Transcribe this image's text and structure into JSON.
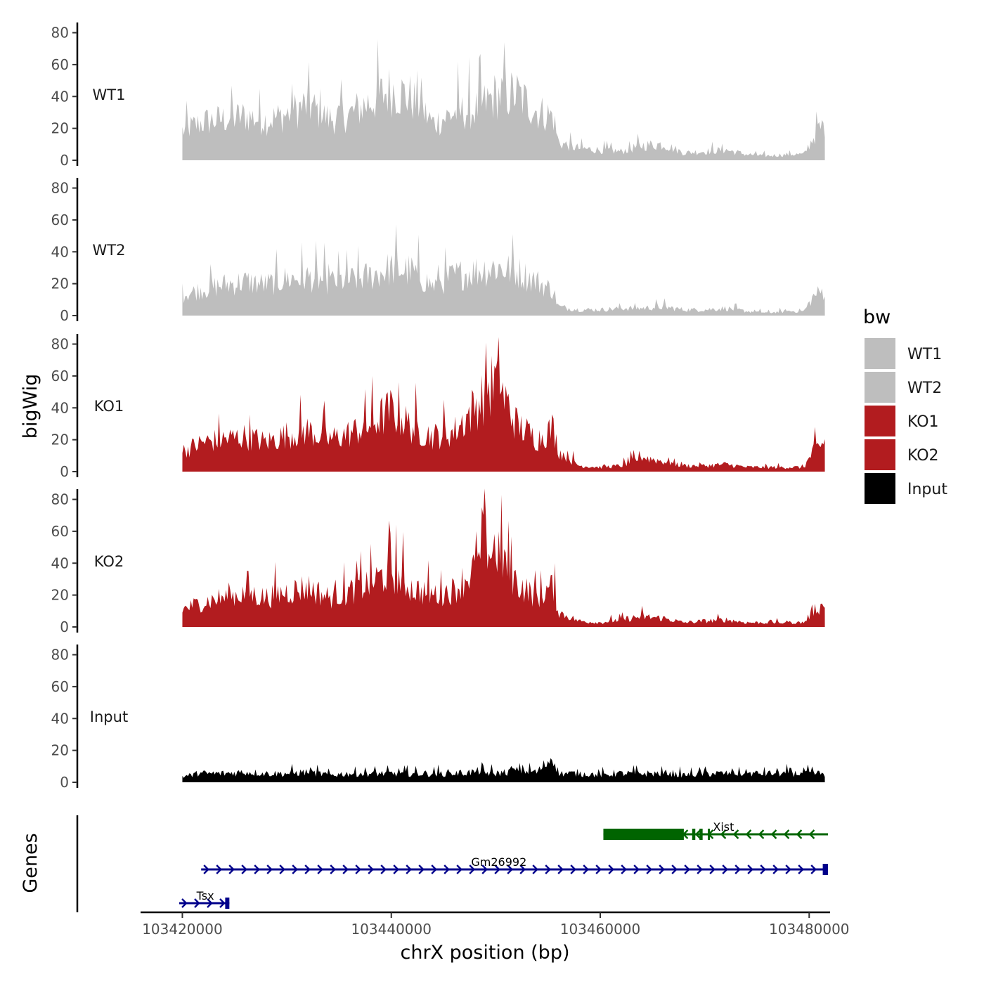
{
  "chart_data": {
    "type": "area",
    "title": "",
    "xlabel": "chrX position (bp)",
    "ylabel": "bigWig",
    "genes_label": "Genes",
    "xlim": [
      103416000,
      103482000
    ],
    "ylim": [
      0,
      82
    ],
    "x_ticks": [
      103420000,
      103440000,
      103460000,
      103480000
    ],
    "x_tick_labels": [
      "103420000",
      "103440000",
      "103460000",
      "103480000"
    ],
    "y_ticks": [
      0,
      20,
      40,
      60,
      80
    ],
    "y_tick_labels": [
      "0",
      "20",
      "40",
      "60",
      "80"
    ],
    "profile_x": [
      103420000,
      103422000,
      103424000,
      103426000,
      103428000,
      103430000,
      103432000,
      103434000,
      103436000,
      103438000,
      103440000,
      103442000,
      103444000,
      103446000,
      103448000,
      103450000,
      103452000,
      103454000,
      103455500,
      103456000,
      103458000,
      103460000,
      103462000,
      103464000,
      103466000,
      103468000,
      103470000,
      103472000,
      103474000,
      103476000,
      103478000,
      103479500,
      103480500,
      103481500
    ],
    "series": [
      {
        "name": "WT1",
        "color": "#bebebe",
        "values": [
          20,
          26,
          28,
          30,
          27,
          31,
          38,
          28,
          31,
          40,
          48,
          42,
          25,
          32,
          34,
          44,
          45,
          33,
          30,
          12,
          8,
          7,
          6,
          10,
          11,
          5,
          6,
          7,
          4,
          3,
          4,
          4,
          17,
          25
        ]
      },
      {
        "name": "WT2",
        "color": "#bebebe",
        "values": [
          14,
          18,
          21,
          23,
          21,
          25,
          26,
          23,
          24,
          27,
          32,
          30,
          20,
          27,
          30,
          33,
          30,
          23,
          17,
          6,
          4,
          4,
          5,
          5,
          6,
          4,
          4,
          5,
          3,
          2,
          3,
          3,
          14,
          17
        ]
      },
      {
        "name": "KO1",
        "color": "#b21c1f",
        "values": [
          14,
          20,
          22,
          24,
          20,
          25,
          28,
          22,
          26,
          32,
          42,
          30,
          24,
          27,
          44,
          62,
          32,
          22,
          30,
          14,
          4,
          3,
          4,
          10,
          7,
          4,
          4,
          5,
          3,
          3,
          3,
          3,
          15,
          20
        ]
      },
      {
        "name": "KO2",
        "color": "#b21c1f",
        "values": [
          12,
          17,
          20,
          23,
          20,
          24,
          27,
          20,
          24,
          30,
          38,
          26,
          22,
          25,
          40,
          55,
          30,
          20,
          28,
          10,
          4,
          3,
          5,
          7,
          6,
          3,
          4,
          5,
          3,
          3,
          3,
          3,
          12,
          15
        ]
      },
      {
        "name": "Input",
        "color": "#000000",
        "values": [
          4,
          6,
          6,
          7,
          6,
          6,
          7,
          5,
          6,
          6,
          6,
          6,
          6,
          6,
          7,
          6,
          8,
          7,
          18,
          6,
          6,
          5,
          6,
          6,
          6,
          5,
          6,
          6,
          6,
          6,
          6,
          6,
          6,
          6
        ]
      }
    ],
    "legend": {
      "title": "bw",
      "position": "right",
      "entries": [
        {
          "label": "WT1",
          "color": "#bebebe"
        },
        {
          "label": "WT2",
          "color": "#bebebe"
        },
        {
          "label": "KO1",
          "color": "#b21c1f"
        },
        {
          "label": "KO2",
          "color": "#b21c1f"
        },
        {
          "label": "Input",
          "color": "#000000"
        }
      ]
    },
    "genes": [
      {
        "name": "Xist",
        "start": 103460300,
        "end": 103481800,
        "strand": "-",
        "color": "#006400",
        "exons": [
          [
            103460300,
            103468000
          ],
          [
            103468800,
            103469100
          ],
          [
            103469500,
            103469800
          ],
          [
            103470300,
            103470500
          ]
        ]
      },
      {
        "name": "Gm26992",
        "start": 103421800,
        "end": 103481800,
        "strand": "+",
        "color": "#00008b",
        "exons": [
          [
            103481300,
            103481800
          ]
        ]
      },
      {
        "name": "Tsx",
        "start": 103419700,
        "end": 103424500,
        "strand": "+",
        "color": "#00008b",
        "exons": [
          [
            103424100,
            103424500
          ]
        ]
      }
    ]
  }
}
